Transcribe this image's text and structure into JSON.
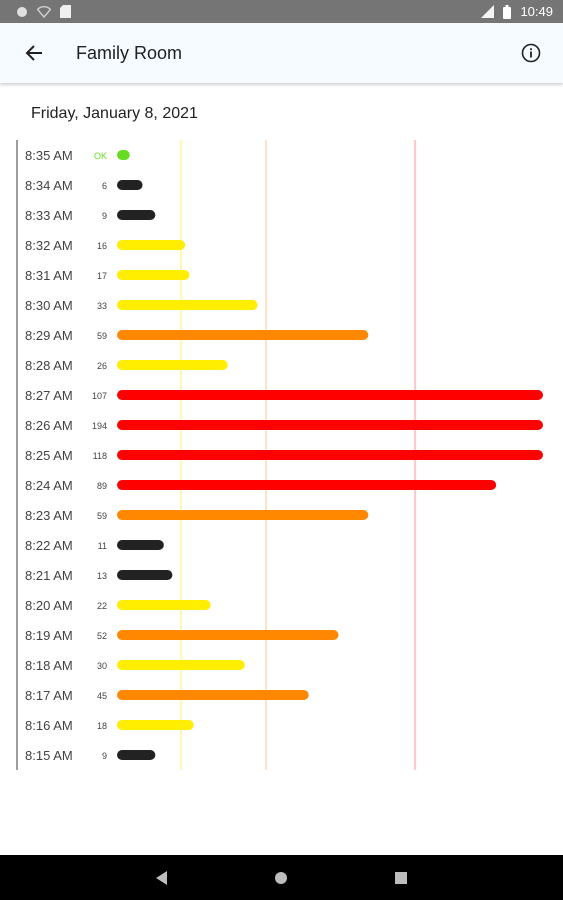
{
  "status_bar": {
    "time": "10:49",
    "icons": [
      "circle-icon",
      "wifi-off-icon",
      "sd-card-icon",
      "signal-icon",
      "battery-icon"
    ]
  },
  "app_bar": {
    "title": "Family Room",
    "back_icon": "arrow-back-icon",
    "info_icon": "info-icon"
  },
  "date": "Friday, January 8, 2021",
  "colors": {
    "ok": "#66dd22",
    "low": "#222222",
    "moderate": "#ffee00",
    "elevated": "#ff8800",
    "high": "#ff0000"
  },
  "chart_data": {
    "type": "bar",
    "orientation": "horizontal",
    "categories": [
      "8:35 AM",
      "8:34 AM",
      "8:33 AM",
      "8:32 AM",
      "8:31 AM",
      "8:30 AM",
      "8:29 AM",
      "8:28 AM",
      "8:27 AM",
      "8:26 AM",
      "8:25 AM",
      "8:24 AM",
      "8:23 AM",
      "8:22 AM",
      "8:21 AM",
      "8:20 AM",
      "8:19 AM",
      "8:18 AM",
      "8:17 AM",
      "8:16 AM",
      "8:15 AM"
    ],
    "value_labels": [
      "OK",
      "6",
      "9",
      "16",
      "17",
      "33",
      "59",
      "26",
      "107",
      "194",
      "118",
      "89",
      "59",
      "11",
      "13",
      "22",
      "52",
      "30",
      "45",
      "18",
      "9"
    ],
    "values": [
      3,
      6,
      9,
      16,
      17,
      33,
      59,
      26,
      107,
      194,
      118,
      89,
      59,
      11,
      13,
      22,
      52,
      30,
      45,
      18,
      9
    ],
    "levels": [
      "ok",
      "low",
      "low",
      "moderate",
      "moderate",
      "moderate",
      "elevated",
      "moderate",
      "high",
      "high",
      "high",
      "high",
      "elevated",
      "low",
      "low",
      "moderate",
      "elevated",
      "moderate",
      "elevated",
      "moderate",
      "low"
    ],
    "thresholds": [
      15,
      35,
      70
    ],
    "xlim": [
      0,
      100
    ]
  },
  "nav_bar": {
    "buttons": [
      "back-triangle-icon",
      "home-circle-icon",
      "recents-square-icon"
    ]
  }
}
